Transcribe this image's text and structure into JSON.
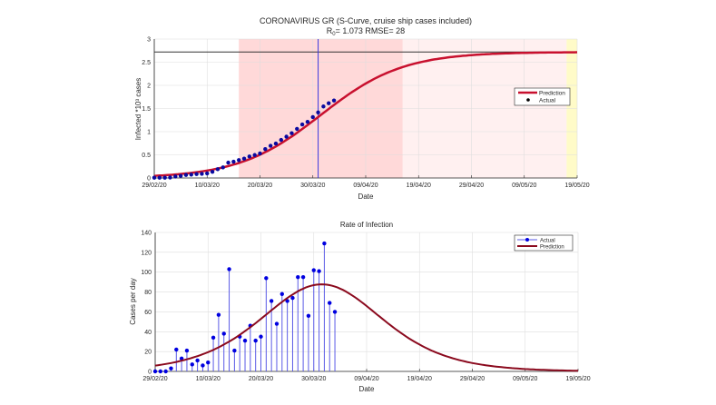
{
  "chart_data": [
    {
      "type": "line",
      "title": "CORONAVIRUS GR (S-Curve,  cruise ship cases included)",
      "subtitle_prefix": "R",
      "subtitle_sub": "0",
      "subtitle_rest": "=  1.073  RMSE=  28",
      "xlabel": "Date",
      "ylabel": "Infected *10³ cases",
      "x_tick_labels": [
        "29/02/20",
        "10/03/20",
        "20/03/20",
        "30/03/20",
        "09/04/20",
        "19/04/20",
        "29/04/20",
        "09/05/20",
        "19/05/20"
      ],
      "x_tick_step_days": 10,
      "xlim_days": [
        0,
        80
      ],
      "ylim": [
        0,
        3
      ],
      "y_ticks": [
        0,
        0.5,
        1,
        1.5,
        2,
        2.5,
        3
      ],
      "y_tick_labels": [
        "0",
        "0.5",
        "1",
        "1.5",
        "2",
        "2.5",
        "3"
      ],
      "grid": true,
      "legend": {
        "position": "right",
        "entries": [
          "Prediction",
          "Actual"
        ]
      },
      "shaded_regions": [
        {
          "from_day": 16,
          "to_day": 47,
          "color": "#ffd9d9"
        },
        {
          "from_day": 47,
          "to_day": 78,
          "color": "#fff0f0"
        },
        {
          "from_day": 78,
          "to_day": 80,
          "color": "#fffbc8"
        }
      ],
      "vline_day": 31,
      "hline_value": 2.72,
      "actual_day0_value": 0.007,
      "prediction_model": {
        "kind": "logistic",
        "K": 2.72,
        "r": 0.129,
        "t0_day": 31.5
      },
      "colors": {
        "prediction": "#c8102e",
        "actual": "#0a0aa0",
        "vline": "#3a3adc",
        "hline": "#333333"
      }
    },
    {
      "type": "bar",
      "title": "Rate of Infection",
      "xlabel": "Date",
      "ylabel": "Cases per day",
      "x_tick_labels": [
        "29/02/20",
        "10/03/20",
        "20/03/20",
        "30/03/20",
        "09/04/20",
        "19/04/20",
        "29/04/20",
        "09/05/20",
        "19/05/20"
      ],
      "x_tick_step_days": 10,
      "xlim_days": [
        0,
        80
      ],
      "ylim": [
        0,
        140
      ],
      "y_ticks": [
        0,
        20,
        40,
        60,
        80,
        100,
        120,
        140
      ],
      "y_tick_labels": [
        "0",
        "20",
        "40",
        "60",
        "80",
        "100",
        "120",
        "140"
      ],
      "grid": true,
      "legend": {
        "position": "top-right",
        "entries": [
          "Actual",
          "Prediction"
        ]
      },
      "actual_daily": [
        0,
        0,
        0,
        3,
        22,
        13,
        21,
        7,
        11,
        6,
        9,
        34,
        57,
        38,
        103,
        21,
        35,
        31,
        46,
        31,
        35,
        94,
        71,
        48,
        78,
        71,
        74,
        95,
        95,
        56,
        102,
        101,
        129,
        69,
        60
      ],
      "prediction_model": {
        "kind": "logistic-derivative",
        "K": 2720,
        "r": 0.129,
        "t0_day": 31.5
      },
      "colors": {
        "prediction": "#8b0a1e",
        "actual": "#0000e0",
        "stem": "#5a5ae6"
      }
    }
  ]
}
